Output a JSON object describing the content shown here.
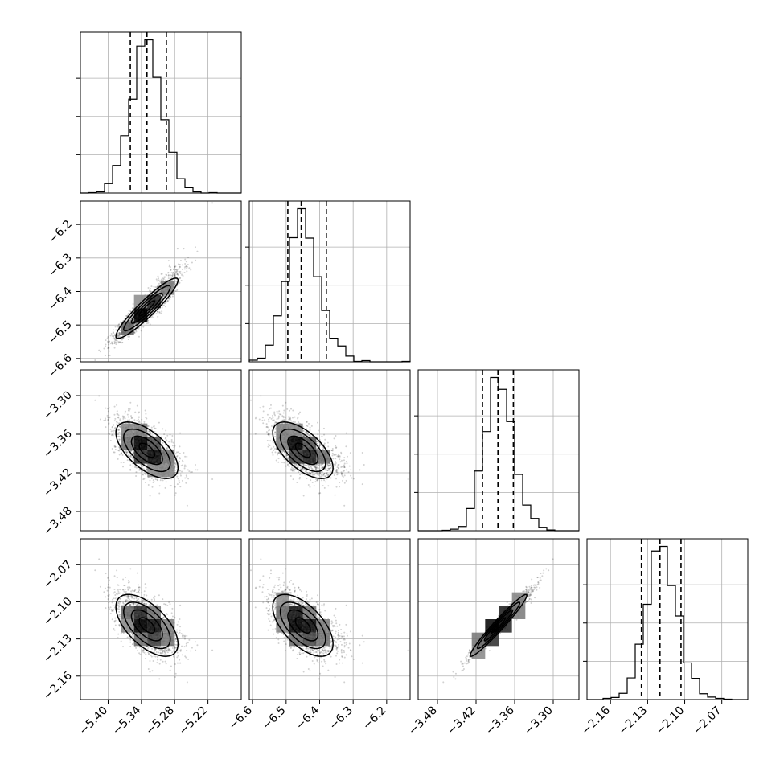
{
  "chart_data": {
    "type": "corner",
    "grid": true,
    "params": [
      {
        "mean": -5.33,
        "sd": 0.028,
        "range": [
          -5.45,
          -5.16
        ],
        "ticks": [
          -5.4,
          -5.34,
          -5.28,
          -5.22
        ],
        "tick_labels": [
          "−5.40",
          "−5.34",
          "−5.28",
          "−5.22"
        ],
        "quantiles": [
          -5.36,
          -5.33,
          -5.295
        ],
        "skew": 0.25
      },
      {
        "mean": -6.45,
        "sd": 0.045,
        "range": [
          -6.61,
          -6.13
        ],
        "ticks": [
          -6.6,
          -6.5,
          -6.4,
          -6.3,
          -6.2
        ],
        "tick_labels": [
          "−6.6",
          "−6.5",
          "−6.4",
          "−6.3",
          "−6.2"
        ],
        "quantiles": [
          -6.495,
          -6.455,
          -6.38
        ],
        "skew": 0.9
      },
      {
        "mean": -3.385,
        "sd": 0.022,
        "range": [
          -3.51,
          -3.26
        ],
        "ticks": [
          -3.48,
          -3.42,
          -3.36,
          -3.3
        ],
        "tick_labels": [
          "−3.48",
          "−3.42",
          "−3.36",
          "−3.30"
        ],
        "quantiles": [
          -3.41,
          -3.386,
          -3.362
        ],
        "skew": 0.2
      },
      {
        "mean": -2.119,
        "sd": 0.0125,
        "range": [
          -2.179,
          -2.049
        ],
        "ticks": [
          -2.16,
          -2.13,
          -2.1,
          -2.07
        ],
        "tick_labels": [
          "−2.16",
          "−2.13",
          "−2.10",
          "−2.07"
        ],
        "quantiles": [
          -2.135,
          -2.12,
          -2.103
        ],
        "skew": 0.2
      }
    ],
    "correlations": [
      [
        1,
        0.93,
        -0.62,
        -0.6
      ],
      [
        0.93,
        1,
        -0.62,
        -0.6
      ],
      [
        -0.62,
        -0.62,
        1,
        0.97
      ],
      [
        -0.6,
        -0.6,
        0.97,
        1
      ]
    ],
    "n_samples": 1800,
    "hist_bins": 20,
    "contour_levels": [
      0.5,
      1.0,
      1.5,
      2.0
    ],
    "colors": {
      "samples": "#000000",
      "lines": "#000000",
      "grid": "#b0b0b0"
    }
  }
}
